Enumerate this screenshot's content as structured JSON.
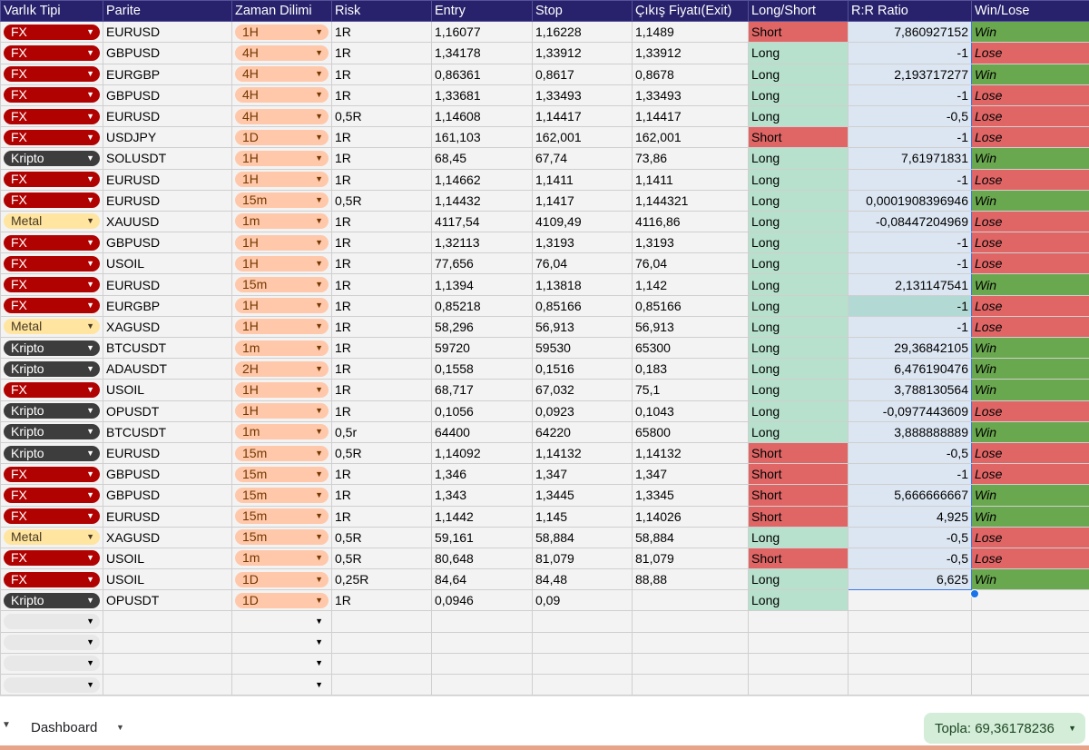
{
  "headers": [
    "Varlık Tipi",
    "Parite",
    "Zaman Dilimi",
    "Risk",
    "Entry",
    "Stop",
    "Çıkış Fiyatı(Exit)",
    "Long/Short",
    "R:R Ratio",
    "Win/Lose"
  ],
  "rows": [
    {
      "asset": "FX",
      "pair": "EURUSD",
      "tf": "1H",
      "risk": "1R",
      "entry": "1,16077",
      "stop": "1,16228",
      "exit": "1,1489",
      "dir": "Short",
      "rr": "7,860927152",
      "wl": "Win"
    },
    {
      "asset": "FX",
      "pair": "GBPUSD",
      "tf": "4H",
      "risk": "1R",
      "entry": "1,34178",
      "stop": "1,33912",
      "exit": "1,33912",
      "dir": "Long",
      "rr": "-1",
      "wl": "Lose"
    },
    {
      "asset": "FX",
      "pair": "EURGBP",
      "tf": "4H",
      "risk": "1R",
      "entry": "0,86361",
      "stop": "0,8617",
      "exit": "0,8678",
      "dir": "Long",
      "rr": "2,193717277",
      "wl": "Win"
    },
    {
      "asset": "FX",
      "pair": "GBPUSD",
      "tf": "4H",
      "risk": "1R",
      "entry": "1,33681",
      "stop": "1,33493",
      "exit": "1,33493",
      "dir": "Long",
      "rr": "-1",
      "wl": "Lose"
    },
    {
      "asset": "FX",
      "pair": "EURUSD",
      "tf": "4H",
      "risk": "0,5R",
      "entry": "1,14608",
      "stop": "1,14417",
      "exit": "1,14417",
      "dir": "Long",
      "rr": "-0,5",
      "wl": "Lose"
    },
    {
      "asset": "FX",
      "pair": "USDJPY",
      "tf": "1D",
      "risk": "1R",
      "entry": "161,103",
      "stop": "162,001",
      "exit": "162,001",
      "dir": "Short",
      "rr": "-1",
      "wl": "Lose"
    },
    {
      "asset": "Kripto",
      "pair": "SOLUSDT",
      "tf": "1H",
      "risk": "1R",
      "entry": "68,45",
      "stop": "67,74",
      "exit": "73,86",
      "dir": "Long",
      "rr": "7,61971831",
      "wl": "Win"
    },
    {
      "asset": "FX",
      "pair": "EURUSD",
      "tf": "1H",
      "risk": "1R",
      "entry": "1,14662",
      "stop": "1,1411",
      "exit": "1,1411",
      "dir": "Long",
      "rr": "-1",
      "wl": "Lose"
    },
    {
      "asset": "FX",
      "pair": "EURUSD",
      "tf": "15m",
      "risk": "0,5R",
      "entry": "1,14432",
      "stop": "1,1417",
      "exit": "1,144321",
      "dir": "Long",
      "rr": "0,0001908396946",
      "wl": "Win"
    },
    {
      "asset": "Metal",
      "pair": "XAUUSD",
      "tf": "1m",
      "risk": "1R",
      "entry": "4117,54",
      "stop": "4109,49",
      "exit": "4116,86",
      "dir": "Long",
      "rr": "-0,08447204969",
      "wl": "Lose"
    },
    {
      "asset": "FX",
      "pair": "GBPUSD",
      "tf": "1H",
      "risk": "1R",
      "entry": "1,32113",
      "stop": "1,3193",
      "exit": "1,3193",
      "dir": "Long",
      "rr": "-1",
      "wl": "Lose"
    },
    {
      "asset": "FX",
      "pair": "USOIL",
      "tf": "1H",
      "risk": "1R",
      "entry": "77,656",
      "stop": "76,04",
      "exit": "76,04",
      "dir": "Long",
      "rr": "-1",
      "wl": "Lose"
    },
    {
      "asset": "FX",
      "pair": "EURUSD",
      "tf": "15m",
      "risk": "1R",
      "entry": "1,1394",
      "stop": "1,13818",
      "exit": "1,142",
      "dir": "Long",
      "rr": "2,131147541",
      "wl": "Win"
    },
    {
      "asset": "FX",
      "pair": "EURGBP",
      "tf": "1H",
      "risk": "1R",
      "entry": "0,85218",
      "stop": "0,85166",
      "exit": "0,85166",
      "dir": "Long",
      "rr": "-1",
      "wl": "Lose"
    },
    {
      "asset": "Metal",
      "pair": "XAGUSD",
      "tf": "1H",
      "risk": "1R",
      "entry": "58,296",
      "stop": "56,913",
      "exit": "56,913",
      "dir": "Long",
      "rr": "-1",
      "wl": "Lose"
    },
    {
      "asset": "Kripto",
      "pair": "BTCUSDT",
      "tf": "1m",
      "risk": "1R",
      "entry": "59720",
      "stop": "59530",
      "exit": "65300",
      "dir": "Long",
      "rr": "29,36842105",
      "wl": "Win"
    },
    {
      "asset": "Kripto",
      "pair": "ADAUSDT",
      "tf": "2H",
      "risk": "1R",
      "entry": "0,1558",
      "stop": "0,1516",
      "exit": "0,183",
      "dir": "Long",
      "rr": "6,476190476",
      "wl": "Win"
    },
    {
      "asset": "FX",
      "pair": "USOIL",
      "tf": "1H",
      "risk": "1R",
      "entry": "68,717",
      "stop": "67,032",
      "exit": "75,1",
      "dir": "Long",
      "rr": "3,788130564",
      "wl": "Win"
    },
    {
      "asset": "Kripto",
      "pair": "OPUSDT",
      "tf": "1H",
      "risk": "1R",
      "entry": "0,1056",
      "stop": "0,0923",
      "exit": "0,1043",
      "dir": "Long",
      "rr": "-0,0977443609",
      "wl": "Lose"
    },
    {
      "asset": "Kripto",
      "pair": "BTCUSDT",
      "tf": "1m",
      "risk": "0,5r",
      "entry": "64400",
      "stop": "64220",
      "exit": "65800",
      "dir": "Long",
      "rr": "3,888888889",
      "wl": "Win"
    },
    {
      "asset": "Kripto",
      "pair": "EURUSD",
      "tf": "15m",
      "risk": "0,5R",
      "entry": "1,14092",
      "stop": "1,14132",
      "exit": "1,14132",
      "dir": "Short",
      "rr": "-0,5",
      "wl": "Lose"
    },
    {
      "asset": "FX",
      "pair": "GBPUSD",
      "tf": "15m",
      "risk": "1R",
      "entry": "1,346",
      "stop": "1,347",
      "exit": "1,347",
      "dir": "Short",
      "rr": "-1",
      "wl": "Lose"
    },
    {
      "asset": "FX",
      "pair": "GBPUSD",
      "tf": "15m",
      "risk": "1R",
      "entry": "1,343",
      "stop": "1,3445",
      "exit": "1,3345",
      "dir": "Short",
      "rr": "5,666666667",
      "wl": "Win"
    },
    {
      "asset": "FX",
      "pair": "EURUSD",
      "tf": "15m",
      "risk": "1R",
      "entry": "1,1442",
      "stop": "1,145",
      "exit": "1,14026",
      "dir": "Short",
      "rr": "4,925",
      "wl": "Win"
    },
    {
      "asset": "Metal",
      "pair": "XAGUSD",
      "tf": "15m",
      "risk": "0,5R",
      "entry": "59,161",
      "stop": "58,884",
      "exit": "58,884",
      "dir": "Long",
      "rr": "-0,5",
      "wl": "Lose"
    },
    {
      "asset": "FX",
      "pair": "USOIL",
      "tf": "1m",
      "risk": "0,5R",
      "entry": "80,648",
      "stop": "81,079",
      "exit": "81,079",
      "dir": "Short",
      "rr": "-0,5",
      "wl": "Lose"
    },
    {
      "asset": "FX",
      "pair": "USOIL",
      "tf": "1D",
      "risk": "0,25R",
      "entry": "84,64",
      "stop": "84,48",
      "exit": "88,88",
      "dir": "Long",
      "rr": "6,625",
      "wl": "Win"
    },
    {
      "asset": "Kripto",
      "pair": "OPUSDT",
      "tf": "1D",
      "risk": "1R",
      "entry": "0,0946",
      "stop": "0,09",
      "exit": "",
      "dir": "Long",
      "rr": "",
      "wl": ""
    },
    {
      "asset": "",
      "pair": "",
      "tf": "",
      "risk": "",
      "entry": "",
      "stop": "",
      "exit": "",
      "dir": "",
      "rr": "",
      "wl": ""
    },
    {
      "asset": "",
      "pair": "",
      "tf": "",
      "risk": "",
      "entry": "",
      "stop": "",
      "exit": "",
      "dir": "",
      "rr": "",
      "wl": ""
    },
    {
      "asset": "",
      "pair": "",
      "tf": "",
      "risk": "",
      "entry": "",
      "stop": "",
      "exit": "",
      "dir": "",
      "rr": "",
      "wl": ""
    },
    {
      "asset": "",
      "pair": "",
      "tf": "",
      "risk": "",
      "entry": "",
      "stop": "",
      "exit": "",
      "dir": "",
      "rr": "",
      "wl": ""
    }
  ],
  "selected_rr_row": 13,
  "bottom": {
    "sheet_tab": "Dashboard",
    "sum_label": "Topla: 69,36178236"
  },
  "icons": {
    "dropdown": "caret-down-icon"
  },
  "colors": {
    "header_bg": "#27226b",
    "fx_chip": "#b10202",
    "kripto_chip": "#3d3d3d",
    "metal_chip": "#ffe5a0",
    "timeframe_chip": "#ffc8aa",
    "short_bg": "#e06666",
    "long_bg": "#b7e1cd",
    "win_bg": "#6aa84f",
    "lose_bg": "#e06666",
    "rr_bg": "#dce6f2",
    "sum_pill_bg": "#d3edd9"
  }
}
